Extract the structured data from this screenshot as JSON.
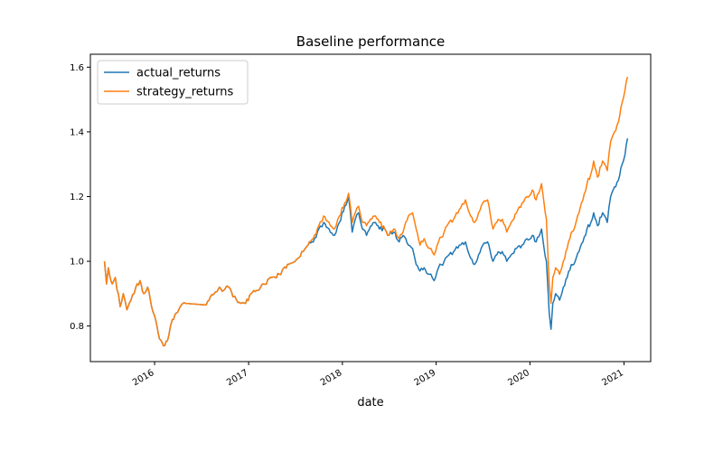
{
  "chart_data": {
    "type": "line",
    "title": "Baseline performance",
    "xlabel": "date",
    "ylabel": "",
    "xlim": [
      "2015-04-26",
      "2021-04-15"
    ],
    "ylim": [
      0.69,
      1.64
    ],
    "x_ticks": [
      "2016-01-01",
      "2017-01-01",
      "2018-01-01",
      "2019-01-01",
      "2020-01-01",
      "2021-01-01"
    ],
    "x_tick_labels": [
      "2016",
      "2017",
      "2018",
      "2019",
      "2020",
      "2021"
    ],
    "y_ticks": [
      0.8,
      1.0,
      1.2,
      1.4,
      1.6
    ],
    "y_tick_labels": [
      "0.8",
      "1.0",
      "1.2",
      "1.4",
      "1.6"
    ],
    "legend_position": "upper-left",
    "grid": false,
    "series": [
      {
        "name": "actual_returns",
        "color": "#1f77b4",
        "points": [
          [
            "2015-06-20",
            1.0
          ],
          [
            "2015-06-28",
            0.93
          ],
          [
            "2015-07-05",
            0.98
          ],
          [
            "2015-07-20",
            0.93
          ],
          [
            "2015-08-01",
            0.95
          ],
          [
            "2015-08-20",
            0.86
          ],
          [
            "2015-09-01",
            0.9
          ],
          [
            "2015-09-15",
            0.85
          ],
          [
            "2015-10-01",
            0.88
          ],
          [
            "2015-10-20",
            0.92
          ],
          [
            "2015-11-05",
            0.94
          ],
          [
            "2015-11-20",
            0.9
          ],
          [
            "2015-12-05",
            0.92
          ],
          [
            "2015-12-20",
            0.86
          ],
          [
            "2016-01-05",
            0.82
          ],
          [
            "2016-01-20",
            0.76
          ],
          [
            "2016-02-10",
            0.74
          ],
          [
            "2016-02-25",
            0.77
          ],
          [
            "2016-03-10",
            0.82
          ],
          [
            "2016-03-25",
            0.84
          ],
          [
            "2016-04-10",
            0.86
          ],
          [
            "2016-04-20",
            0.87
          ],
          [
            "2016-05-01",
            0.87
          ],
          [
            "2016-07-20",
            0.865
          ],
          [
            "2016-08-05",
            0.89
          ],
          [
            "2016-08-20",
            0.9
          ],
          [
            "2016-09-10",
            0.92
          ],
          [
            "2016-09-25",
            0.91
          ],
          [
            "2016-10-15",
            0.92
          ],
          [
            "2016-11-01",
            0.89
          ],
          [
            "2016-11-15",
            0.88
          ],
          [
            "2016-12-01",
            0.87
          ],
          [
            "2016-12-20",
            0.87
          ],
          [
            "2017-01-10",
            0.9
          ],
          [
            "2017-02-01",
            0.91
          ],
          [
            "2017-03-01",
            0.93
          ],
          [
            "2017-04-01",
            0.95
          ],
          [
            "2017-05-01",
            0.96
          ],
          [
            "2017-06-01",
            0.99
          ],
          [
            "2017-07-01",
            1.0
          ],
          [
            "2017-08-01",
            1.03
          ],
          [
            "2017-08-20",
            1.05
          ],
          [
            "2017-09-10",
            1.06
          ],
          [
            "2017-10-01",
            1.1
          ],
          [
            "2017-10-20",
            1.12
          ],
          [
            "2017-11-10",
            1.1
          ],
          [
            "2017-12-01",
            1.08
          ],
          [
            "2017-12-20",
            1.12
          ],
          [
            "2018-01-10",
            1.17
          ],
          [
            "2018-01-25",
            1.2
          ],
          [
            "2018-02-08",
            1.09
          ],
          [
            "2018-02-20",
            1.13
          ],
          [
            "2018-03-05",
            1.15
          ],
          [
            "2018-03-20",
            1.1
          ],
          [
            "2018-04-05",
            1.08
          ],
          [
            "2018-04-25",
            1.11
          ],
          [
            "2018-05-10",
            1.12
          ],
          [
            "2018-05-25",
            1.1
          ],
          [
            "2018-06-15",
            1.1
          ],
          [
            "2018-07-01",
            1.08
          ],
          [
            "2018-07-20",
            1.09
          ],
          [
            "2018-08-10",
            1.06
          ],
          [
            "2018-08-25",
            1.08
          ],
          [
            "2018-09-15",
            1.05
          ],
          [
            "2018-10-01",
            1.04
          ],
          [
            "2018-10-15",
            0.99
          ],
          [
            "2018-10-30",
            0.97
          ],
          [
            "2018-11-15",
            0.98
          ],
          [
            "2018-12-05",
            0.96
          ],
          [
            "2018-12-24",
            0.94
          ],
          [
            "2019-01-10",
            0.98
          ],
          [
            "2019-02-01",
            1.0
          ],
          [
            "2019-02-20",
            1.02
          ],
          [
            "2019-03-10",
            1.03
          ],
          [
            "2019-04-01",
            1.05
          ],
          [
            "2019-04-25",
            1.06
          ],
          [
            "2019-05-10",
            1.02
          ],
          [
            "2019-05-30",
            0.99
          ],
          [
            "2019-06-15",
            1.02
          ],
          [
            "2019-07-01",
            1.05
          ],
          [
            "2019-07-20",
            1.06
          ],
          [
            "2019-08-10",
            1.0
          ],
          [
            "2019-08-25",
            1.02
          ],
          [
            "2019-09-15",
            1.03
          ],
          [
            "2019-10-03",
            1.0
          ],
          [
            "2019-10-20",
            1.02
          ],
          [
            "2019-11-10",
            1.04
          ],
          [
            "2019-12-01",
            1.05
          ],
          [
            "2019-12-20",
            1.07
          ],
          [
            "2020-01-10",
            1.08
          ],
          [
            "2020-01-25",
            1.06
          ],
          [
            "2020-02-15",
            1.1
          ],
          [
            "2020-02-25",
            1.04
          ],
          [
            "2020-03-05",
            1.0
          ],
          [
            "2020-03-12",
            0.9
          ],
          [
            "2020-03-16",
            0.84
          ],
          [
            "2020-03-23",
            0.79
          ],
          [
            "2020-03-30",
            0.87
          ],
          [
            "2020-04-10",
            0.9
          ],
          [
            "2020-04-25",
            0.88
          ],
          [
            "2020-05-10",
            0.92
          ],
          [
            "2020-05-25",
            0.95
          ],
          [
            "2020-06-10",
            0.99
          ],
          [
            "2020-06-25",
            1.0
          ],
          [
            "2020-07-10",
            1.03
          ],
          [
            "2020-07-25",
            1.06
          ],
          [
            "2020-08-10",
            1.1
          ],
          [
            "2020-08-25",
            1.12
          ],
          [
            "2020-09-05",
            1.15
          ],
          [
            "2020-09-20",
            1.11
          ],
          [
            "2020-10-10",
            1.15
          ],
          [
            "2020-10-28",
            1.12
          ],
          [
            "2020-11-10",
            1.2
          ],
          [
            "2020-11-25",
            1.23
          ],
          [
            "2020-12-10",
            1.25
          ],
          [
            "2020-12-25",
            1.3
          ],
          [
            "2021-01-05",
            1.33
          ],
          [
            "2021-01-15",
            1.38
          ]
        ]
      },
      {
        "name": "strategy_returns",
        "color": "#ff7f0e",
        "points": [
          [
            "2015-06-20",
            1.0
          ],
          [
            "2015-06-28",
            0.93
          ],
          [
            "2015-07-05",
            0.98
          ],
          [
            "2015-07-20",
            0.93
          ],
          [
            "2015-08-01",
            0.95
          ],
          [
            "2015-08-20",
            0.86
          ],
          [
            "2015-09-01",
            0.9
          ],
          [
            "2015-09-15",
            0.85
          ],
          [
            "2015-10-01",
            0.88
          ],
          [
            "2015-10-20",
            0.92
          ],
          [
            "2015-11-05",
            0.94
          ],
          [
            "2015-11-20",
            0.9
          ],
          [
            "2015-12-05",
            0.92
          ],
          [
            "2015-12-20",
            0.86
          ],
          [
            "2016-01-05",
            0.82
          ],
          [
            "2016-01-20",
            0.76
          ],
          [
            "2016-02-10",
            0.74
          ],
          [
            "2016-02-25",
            0.77
          ],
          [
            "2016-03-10",
            0.82
          ],
          [
            "2016-03-25",
            0.84
          ],
          [
            "2016-04-10",
            0.86
          ],
          [
            "2016-04-20",
            0.87
          ],
          [
            "2016-05-01",
            0.87
          ],
          [
            "2016-07-20",
            0.865
          ],
          [
            "2016-08-05",
            0.89
          ],
          [
            "2016-08-20",
            0.9
          ],
          [
            "2016-09-10",
            0.92
          ],
          [
            "2016-09-25",
            0.91
          ],
          [
            "2016-10-15",
            0.92
          ],
          [
            "2016-11-01",
            0.89
          ],
          [
            "2016-11-15",
            0.88
          ],
          [
            "2016-12-01",
            0.87
          ],
          [
            "2016-12-20",
            0.87
          ],
          [
            "2017-01-10",
            0.9
          ],
          [
            "2017-02-01",
            0.91
          ],
          [
            "2017-03-01",
            0.93
          ],
          [
            "2017-04-01",
            0.95
          ],
          [
            "2017-05-01",
            0.96
          ],
          [
            "2017-06-01",
            0.99
          ],
          [
            "2017-07-01",
            1.0
          ],
          [
            "2017-08-01",
            1.03
          ],
          [
            "2017-08-20",
            1.05
          ],
          [
            "2017-09-10",
            1.07
          ],
          [
            "2017-10-01",
            1.11
          ],
          [
            "2017-10-20",
            1.14
          ],
          [
            "2017-11-10",
            1.12
          ],
          [
            "2017-12-01",
            1.1
          ],
          [
            "2017-12-20",
            1.14
          ],
          [
            "2018-01-10",
            1.18
          ],
          [
            "2018-01-25",
            1.21
          ],
          [
            "2018-02-08",
            1.12
          ],
          [
            "2018-02-20",
            1.15
          ],
          [
            "2018-03-05",
            1.17
          ],
          [
            "2018-03-20",
            1.12
          ],
          [
            "2018-04-05",
            1.11
          ],
          [
            "2018-04-25",
            1.13
          ],
          [
            "2018-05-10",
            1.14
          ],
          [
            "2018-05-25",
            1.12
          ],
          [
            "2018-06-15",
            1.1
          ],
          [
            "2018-07-01",
            1.08
          ],
          [
            "2018-07-20",
            1.1
          ],
          [
            "2018-08-10",
            1.07
          ],
          [
            "2018-08-25",
            1.09
          ],
          [
            "2018-09-15",
            1.14
          ],
          [
            "2018-10-01",
            1.15
          ],
          [
            "2018-10-15",
            1.1
          ],
          [
            "2018-10-30",
            1.05
          ],
          [
            "2018-11-15",
            1.07
          ],
          [
            "2018-12-05",
            1.04
          ],
          [
            "2018-12-24",
            1.02
          ],
          [
            "2019-01-10",
            1.06
          ],
          [
            "2019-02-01",
            1.09
          ],
          [
            "2019-02-20",
            1.12
          ],
          [
            "2019-03-10",
            1.13
          ],
          [
            "2019-04-01",
            1.16
          ],
          [
            "2019-04-25",
            1.19
          ],
          [
            "2019-05-10",
            1.15
          ],
          [
            "2019-05-30",
            1.12
          ],
          [
            "2019-06-15",
            1.15
          ],
          [
            "2019-07-01",
            1.18
          ],
          [
            "2019-07-20",
            1.19
          ],
          [
            "2019-08-10",
            1.1
          ],
          [
            "2019-08-25",
            1.12
          ],
          [
            "2019-09-15",
            1.13
          ],
          [
            "2019-10-03",
            1.09
          ],
          [
            "2019-10-20",
            1.12
          ],
          [
            "2019-11-10",
            1.15
          ],
          [
            "2019-12-01",
            1.18
          ],
          [
            "2019-12-20",
            1.2
          ],
          [
            "2020-01-10",
            1.22
          ],
          [
            "2020-01-25",
            1.19
          ],
          [
            "2020-02-15",
            1.24
          ],
          [
            "2020-02-25",
            1.18
          ],
          [
            "2020-03-05",
            1.13
          ],
          [
            "2020-03-12",
            1.0
          ],
          [
            "2020-03-16",
            0.93
          ],
          [
            "2020-03-23",
            0.87
          ],
          [
            "2020-03-30",
            0.95
          ],
          [
            "2020-04-10",
            0.98
          ],
          [
            "2020-04-25",
            0.96
          ],
          [
            "2020-05-10",
            1.0
          ],
          [
            "2020-05-25",
            1.04
          ],
          [
            "2020-06-10",
            1.09
          ],
          [
            "2020-06-25",
            1.11
          ],
          [
            "2020-07-10",
            1.15
          ],
          [
            "2020-07-25",
            1.19
          ],
          [
            "2020-08-10",
            1.24
          ],
          [
            "2020-08-25",
            1.27
          ],
          [
            "2020-09-05",
            1.31
          ],
          [
            "2020-09-20",
            1.26
          ],
          [
            "2020-10-10",
            1.31
          ],
          [
            "2020-10-28",
            1.28
          ],
          [
            "2020-11-10",
            1.37
          ],
          [
            "2020-11-25",
            1.4
          ],
          [
            "2020-12-10",
            1.43
          ],
          [
            "2020-12-25",
            1.49
          ],
          [
            "2021-01-05",
            1.53
          ],
          [
            "2021-01-15",
            1.57
          ]
        ]
      }
    ]
  }
}
